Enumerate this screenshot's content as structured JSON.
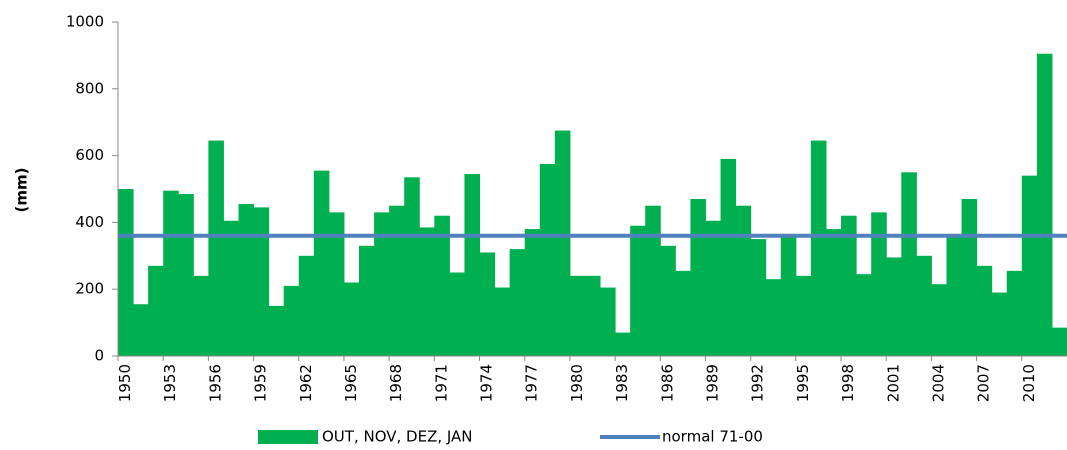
{
  "chart_data": {
    "type": "bar",
    "y_label": "(mm)",
    "categories": [
      "1950",
      null,
      null,
      "1953",
      null,
      null,
      "1956",
      null,
      null,
      "1959",
      null,
      null,
      "1962",
      null,
      null,
      "1965",
      null,
      null,
      "1968",
      null,
      null,
      "1971",
      null,
      null,
      "1974",
      null,
      null,
      "1977",
      null,
      null,
      "1980",
      null,
      null,
      "1983",
      null,
      null,
      "1986",
      null,
      null,
      "1989",
      null,
      null,
      "1992",
      null,
      null,
      "1995",
      null,
      null,
      "1998",
      null,
      null,
      "2001",
      null,
      null,
      "2004",
      null,
      null,
      "2007",
      null,
      null,
      "2010",
      null,
      null
    ],
    "series": [
      {
        "name": "OUT, NOV, DEZ, JAN",
        "color": "#00b050",
        "values": [
          500,
          155,
          270,
          495,
          485,
          240,
          645,
          405,
          455,
          445,
          150,
          210,
          300,
          555,
          430,
          220,
          330,
          430,
          450,
          535,
          385,
          420,
          250,
          545,
          310,
          205,
          320,
          380,
          575,
          675,
          240,
          240,
          205,
          70,
          390,
          450,
          330,
          255,
          470,
          405,
          590,
          450,
          350,
          230,
          360,
          240,
          645,
          380,
          420,
          245,
          430,
          295,
          550,
          300,
          215,
          360,
          470,
          270,
          190,
          255,
          540,
          905,
          85
        ]
      }
    ],
    "normal": {
      "name": "normal 71-00",
      "value": 360,
      "color": "#4f81bd"
    },
    "ylim": [
      0,
      1000
    ],
    "yticks": [
      0,
      200,
      400,
      600,
      800,
      1000
    ],
    "grid": false
  }
}
